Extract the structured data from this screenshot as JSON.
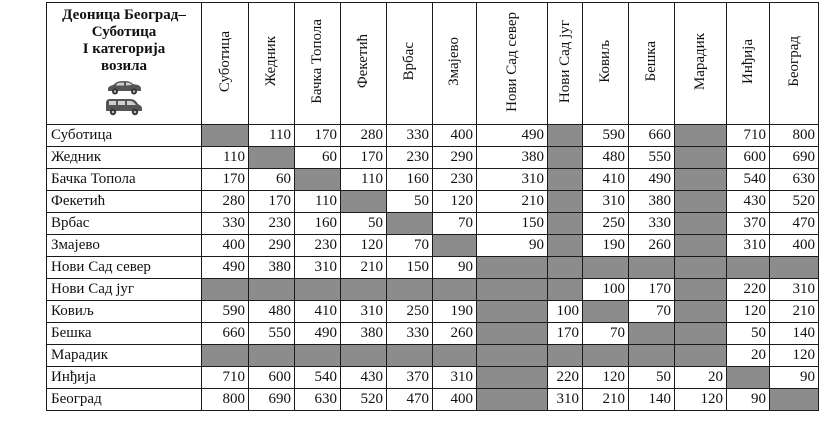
{
  "table": {
    "title_lines": [
      "Деоница Београд–",
      "Суботица",
      "I категорија",
      "возила"
    ],
    "icons": [
      "car-icon",
      "van-icon"
    ],
    "colors": {
      "shaded": "#8c8c8c",
      "border": "#1a1a1a"
    },
    "columns": [
      "Суботица",
      "Жедник",
      "Бачка Топола",
      "Фекетић",
      "Врбас",
      "Змајево",
      "Нови Сад север",
      "Нови Сад југ",
      "Ковиљ",
      "Бешка",
      "Марадик",
      "Инђија",
      "Београд"
    ],
    "rows": [
      {
        "label": "Суботица",
        "cells": [
          null,
          "110",
          "170",
          "280",
          "330",
          "400",
          "490",
          null,
          "590",
          "660",
          null,
          "710",
          "800"
        ]
      },
      {
        "label": "Жедник",
        "cells": [
          "110",
          null,
          "60",
          "170",
          "230",
          "290",
          "380",
          null,
          "480",
          "550",
          null,
          "600",
          "690"
        ]
      },
      {
        "label": "Бачка Топола",
        "cells": [
          "170",
          "60",
          null,
          "110",
          "160",
          "230",
          "310",
          null,
          "410",
          "490",
          null,
          "540",
          "630"
        ]
      },
      {
        "label": "Фекетић",
        "cells": [
          "280",
          "170",
          "110",
          null,
          "50",
          "120",
          "210",
          null,
          "310",
          "380",
          null,
          "430",
          "520"
        ]
      },
      {
        "label": "Врбас",
        "cells": [
          "330",
          "230",
          "160",
          "50",
          null,
          "70",
          "150",
          null,
          "250",
          "330",
          null,
          "370",
          "470"
        ]
      },
      {
        "label": "Змајево",
        "cells": [
          "400",
          "290",
          "230",
          "120",
          "70",
          null,
          "90",
          null,
          "190",
          "260",
          null,
          "310",
          "400"
        ]
      },
      {
        "label": "Нови Сад север",
        "cells": [
          "490",
          "380",
          "310",
          "210",
          "150",
          "90",
          null,
          null,
          null,
          null,
          null,
          null,
          null
        ]
      },
      {
        "label": "Нови Сад југ",
        "cells": [
          null,
          null,
          null,
          null,
          null,
          null,
          null,
          null,
          "100",
          "170",
          null,
          "220",
          "310"
        ]
      },
      {
        "label": "Ковиљ",
        "cells": [
          "590",
          "480",
          "410",
          "310",
          "250",
          "190",
          null,
          "100",
          null,
          "70",
          null,
          "120",
          "210"
        ]
      },
      {
        "label": "Бешка",
        "cells": [
          "660",
          "550",
          "490",
          "380",
          "330",
          "260",
          null,
          "170",
          "70",
          null,
          null,
          "50",
          "140"
        ]
      },
      {
        "label": "Марадик",
        "cells": [
          null,
          null,
          null,
          null,
          null,
          null,
          null,
          null,
          null,
          null,
          null,
          "20",
          "120"
        ]
      },
      {
        "label": "Инђија",
        "cells": [
          "710",
          "600",
          "540",
          "430",
          "370",
          "310",
          null,
          "220",
          "120",
          "50",
          "20",
          null,
          "90"
        ]
      },
      {
        "label": "Београд",
        "cells": [
          "800",
          "690",
          "630",
          "520",
          "470",
          "400",
          null,
          "310",
          "210",
          "140",
          "120",
          "90",
          null
        ]
      }
    ]
  }
}
